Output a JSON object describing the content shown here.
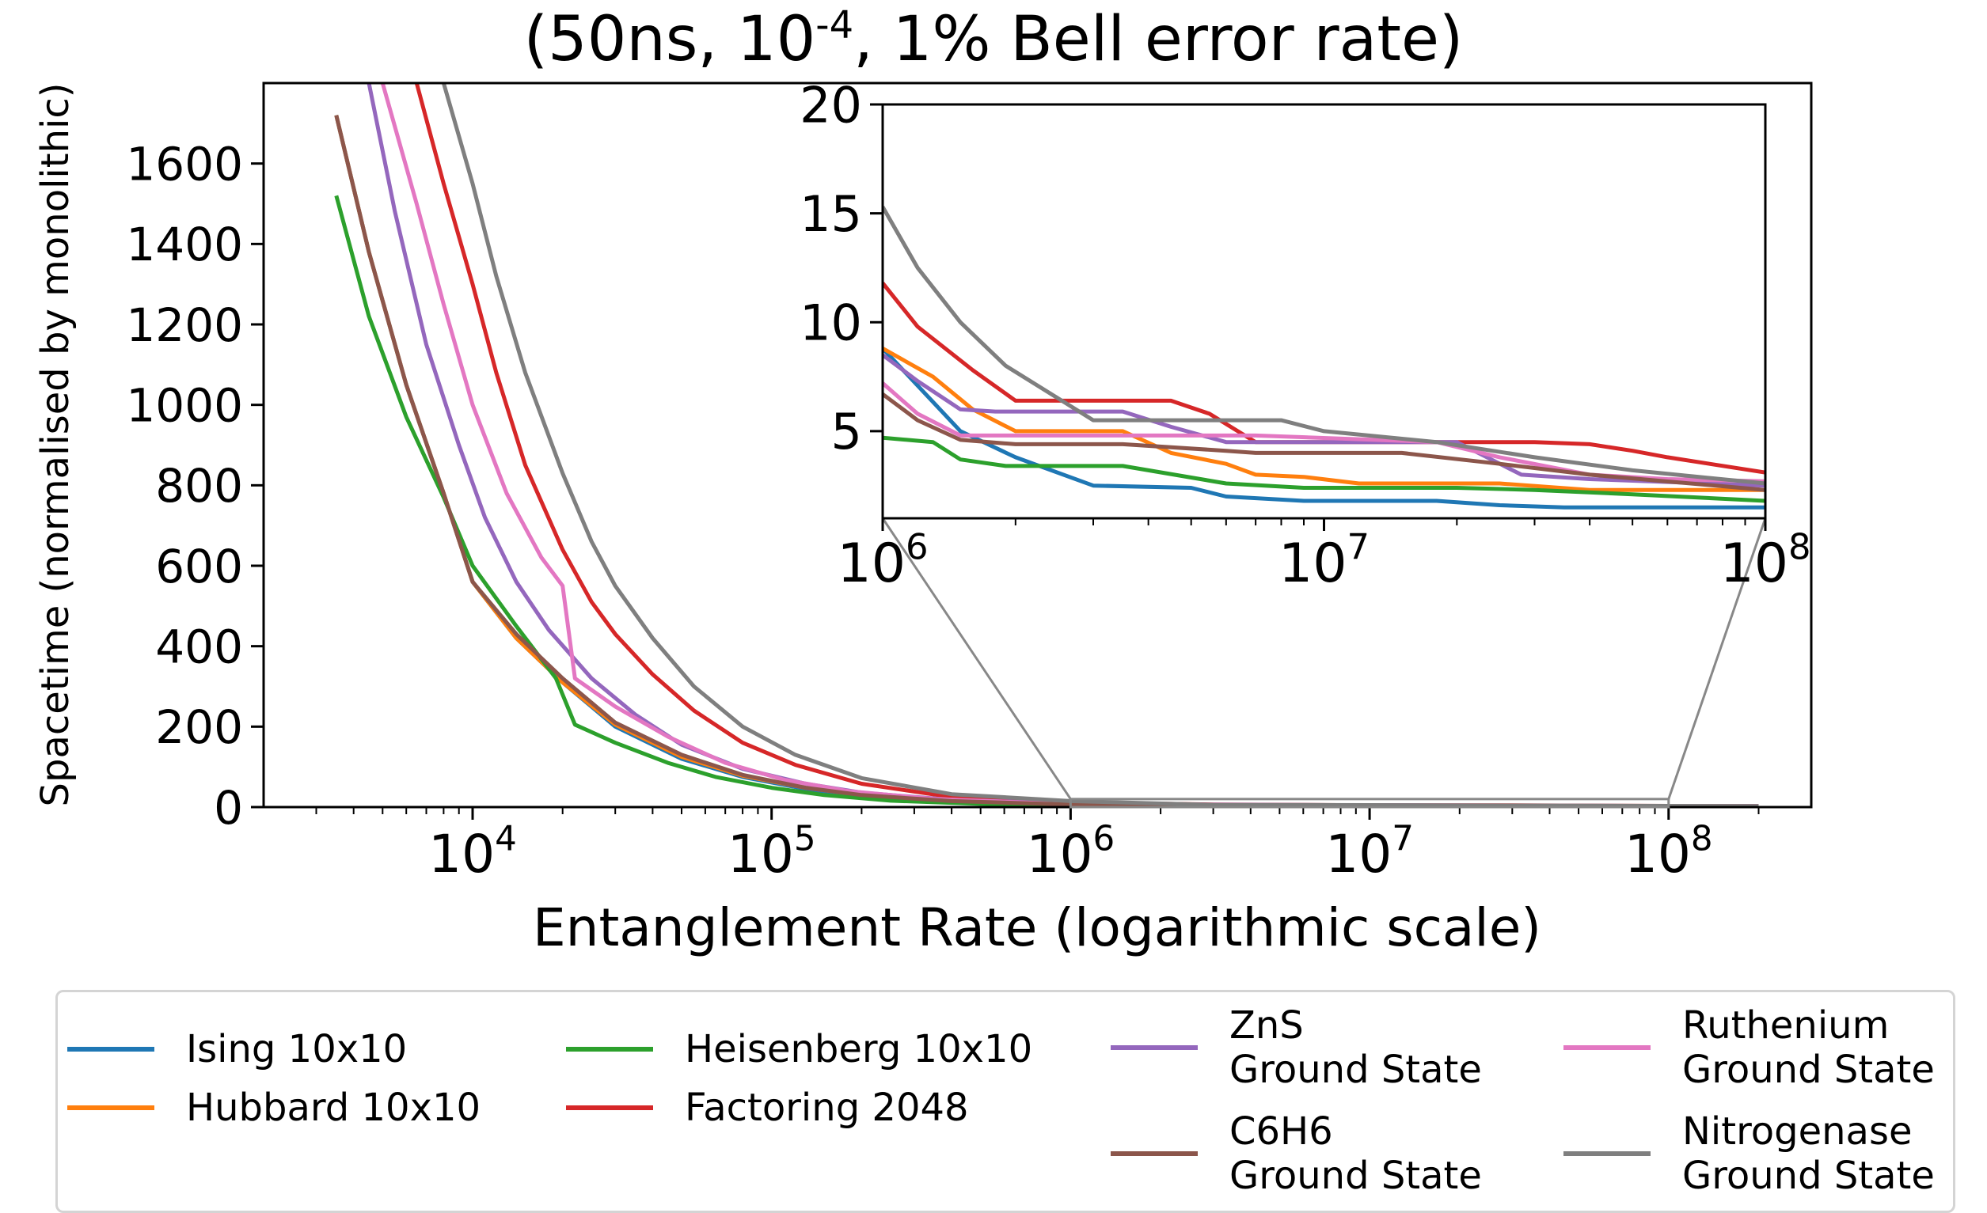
{
  "title": {
    "prefix": "(50ns, 10",
    "exponent": "-4",
    "suffix": ", 1% Bell error rate)"
  },
  "chart_data": [
    {
      "type": "line",
      "name": "main",
      "title": "(50ns, 10^-4, 1% Bell error rate)",
      "xlabel": "Entanglement Rate (logarithmic scale)",
      "ylabel": "Spacetime (normalised by monolithic)",
      "xscale": "log",
      "xlim": [
        2000,
        300000000
      ],
      "ylim": [
        0,
        1800
      ],
      "yticks": [
        0,
        200,
        400,
        600,
        800,
        1000,
        1200,
        1400,
        1600
      ],
      "xticks": [
        {
          "value": 10000,
          "base": "10",
          "exp": "4"
        },
        {
          "value": 100000,
          "base": "10",
          "exp": "5"
        },
        {
          "value": 1000000,
          "base": "10",
          "exp": "6"
        },
        {
          "value": 10000000,
          "base": "10",
          "exp": "7"
        },
        {
          "value": 100000000,
          "base": "10",
          "exp": "8"
        }
      ],
      "grid": false,
      "legend": "below",
      "series": [
        {
          "name": "Ising 10x10",
          "color": "#1f77b4",
          "x": [
            3500,
            4500,
            6000,
            8000,
            10000,
            14000,
            20000,
            30000,
            50000,
            80000,
            130000,
            200000,
            400000,
            1000000,
            3000000,
            10000000,
            30000000,
            100000000,
            200000000
          ],
          "y": [
            1720,
            1380,
            1050,
            780,
            560,
            420,
            310,
            200,
            120,
            75,
            45,
            28,
            14,
            9,
            3,
            2,
            1.5,
            1.5,
            1.5
          ]
        },
        {
          "name": "Hubbard 10x10",
          "color": "#ff7f0e",
          "x": [
            3500,
            4500,
            6000,
            8000,
            10000,
            14000,
            20000,
            30000,
            50000,
            80000,
            130000,
            200000,
            400000,
            1000000,
            3000000,
            10000000,
            30000000,
            100000000,
            200000000
          ],
          "y": [
            1720,
            1380,
            1050,
            780,
            560,
            420,
            310,
            205,
            125,
            78,
            48,
            30,
            16,
            9,
            5,
            3,
            2.5,
            2,
            2
          ]
        },
        {
          "name": "Heisenberg 10x10",
          "color": "#2ca02c",
          "x": [
            3500,
            4500,
            6000,
            8000,
            10000,
            14000,
            19000,
            22000,
            30000,
            45000,
            65000,
            100000,
            150000,
            250000,
            500000,
            1000000,
            3000000,
            10000000,
            30000000,
            100000000,
            200000000
          ],
          "y": [
            1520,
            1220,
            970,
            770,
            600,
            450,
            320,
            205,
            160,
            110,
            75,
            48,
            30,
            16,
            8,
            4.5,
            3,
            2.3,
            2.2,
            1.8,
            1.8
          ]
        },
        {
          "name": "Factoring 2048",
          "color": "#d62728",
          "x": [
            6500,
            8000,
            10000,
            12000,
            15000,
            20000,
            25000,
            30000,
            40000,
            55000,
            80000,
            120000,
            200000,
            400000,
            1000000,
            3000000,
            10000000,
            30000000,
            100000000,
            200000000
          ],
          "y": [
            1800,
            1550,
            1300,
            1080,
            850,
            640,
            510,
            430,
            330,
            240,
            160,
            105,
            58,
            25,
            12,
            6.5,
            4.5,
            4.5,
            3,
            3
          ]
        },
        {
          "name": "ZnS\nGround State",
          "color": "#9467bd",
          "x": [
            4500,
            5500,
            7000,
            9000,
            11000,
            14000,
            18000,
            25000,
            35000,
            50000,
            80000,
            130000,
            200000,
            400000,
            1000000,
            3000000,
            10000000,
            30000000,
            100000000,
            200000000
          ],
          "y": [
            1800,
            1480,
            1150,
            900,
            720,
            560,
            440,
            320,
            230,
            155,
            95,
            58,
            36,
            18,
            9,
            6,
            4.5,
            3,
            2.3,
            2.3
          ]
        },
        {
          "name": "Ruthenium\nGround State",
          "color": "#e377c2",
          "x": [
            5000,
            6500,
            8000,
            10000,
            13000,
            17000,
            20000,
            22000,
            30000,
            45000,
            70000,
            110000,
            180000,
            350000,
            1000000,
            3000000,
            10000000,
            30000000,
            100000000,
            200000000
          ],
          "y": [
            1800,
            1500,
            1250,
            1000,
            780,
            620,
            550,
            320,
            250,
            175,
            110,
            68,
            40,
            20,
            7,
            5,
            4.5,
            4,
            2.5,
            2.5
          ]
        },
        {
          "name": "C6H6\nGround State",
          "color": "#8c564b",
          "x": [
            3500,
            4500,
            6000,
            8000,
            10000,
            14000,
            20000,
            30000,
            50000,
            80000,
            130000,
            200000,
            400000,
            1000000,
            3000000,
            10000000,
            30000000,
            100000000,
            200000000
          ],
          "y": [
            1720,
            1380,
            1050,
            780,
            560,
            430,
            320,
            210,
            130,
            80,
            48,
            30,
            15,
            6.5,
            4.5,
            4,
            3.5,
            2.5,
            2.2
          ]
        },
        {
          "name": "Nitrogenase\nGround State",
          "color": "#7f7f7f",
          "x": [
            8000,
            10000,
            12000,
            15000,
            20000,
            25000,
            30000,
            40000,
            55000,
            80000,
            120000,
            200000,
            400000,
            1000000,
            3000000,
            10000000,
            30000000,
            100000000,
            200000000
          ],
          "y": [
            1800,
            1550,
            1320,
            1080,
            830,
            660,
            550,
            420,
            300,
            200,
            130,
            72,
            32,
            15,
            5.5,
            5,
            4,
            3,
            2.6
          ]
        }
      ]
    },
    {
      "type": "line",
      "name": "inset",
      "xscale": "log",
      "xlim": [
        1000000,
        100000000
      ],
      "ylim": [
        1,
        20
      ],
      "yticks": [
        5,
        10,
        15,
        20
      ],
      "xticks": [
        {
          "value": 1000000,
          "base": "10",
          "exp": "6"
        },
        {
          "value": 10000000,
          "base": "10",
          "exp": "7"
        },
        {
          "value": 100000000,
          "base": "10",
          "exp": "8"
        }
      ],
      "zoom_region": {
        "x": [
          1000000,
          100000000
        ],
        "y": [
          0,
          20
        ]
      },
      "series": [
        {
          "name": "Ising 10x10",
          "color": "#1f77b4",
          "x": [
            1000000,
            1500000,
            2000000,
            3000000,
            5000000,
            6000000,
            9000000,
            18000000,
            25000000,
            35000000,
            100000000
          ],
          "y": [
            8.8,
            5.0,
            3.8,
            2.5,
            2.4,
            2.0,
            1.8,
            1.8,
            1.6,
            1.5,
            1.5
          ]
        },
        {
          "name": "Hubbard 10x10",
          "color": "#ff7f0e",
          "x": [
            1000000,
            1300000,
            1600000,
            2000000,
            3500000,
            4500000,
            6000000,
            7000000,
            9000000,
            12000000,
            25000000,
            40000000,
            100000000
          ],
          "y": [
            8.8,
            7.5,
            6.0,
            5.0,
            5.0,
            4.0,
            3.5,
            3.0,
            2.9,
            2.6,
            2.6,
            2.3,
            2.3
          ]
        },
        {
          "name": "Heisenberg 10x10",
          "color": "#2ca02c",
          "x": [
            1000000,
            1300000,
            1500000,
            1900000,
            3500000,
            6000000,
            9000000,
            20000000,
            30000000,
            50000000,
            100000000
          ],
          "y": [
            4.7,
            4.5,
            3.7,
            3.4,
            3.4,
            2.6,
            2.4,
            2.4,
            2.3,
            2.1,
            1.8
          ]
        },
        {
          "name": "Factoring 2048",
          "color": "#d62728",
          "x": [
            1000000,
            1200000,
            1600000,
            2000000,
            4500000,
            5500000,
            7000000,
            30000000,
            40000000,
            50000000,
            60000000,
            100000000
          ],
          "y": [
            11.8,
            9.8,
            7.8,
            6.4,
            6.4,
            5.8,
            4.5,
            4.5,
            4.4,
            4.1,
            3.8,
            3.1
          ]
        },
        {
          "name": "ZnS\nGround State",
          "color": "#9467bd",
          "x": [
            1000000,
            1200000,
            1500000,
            1800000,
            3500000,
            4500000,
            6000000,
            9000000,
            20000000,
            28000000,
            40000000,
            100000000
          ],
          "y": [
            8.5,
            7.3,
            6.0,
            5.9,
            5.9,
            5.2,
            4.5,
            4.5,
            4.5,
            3.0,
            2.8,
            2.5
          ]
        },
        {
          "name": "Ruthenium\nGround State",
          "color": "#e377c2",
          "x": [
            1000000,
            1200000,
            1500000,
            2000000,
            3500000,
            5500000,
            7000000,
            18000000,
            25000000,
            40000000,
            60000000,
            100000000
          ],
          "y": [
            7.2,
            5.8,
            4.8,
            4.8,
            4.8,
            4.8,
            4.8,
            4.5,
            3.8,
            3.0,
            2.8,
            2.7
          ]
        },
        {
          "name": "C6H6\nGround State",
          "color": "#8c564b",
          "x": [
            1000000,
            1200000,
            1500000,
            2000000,
            3500000,
            6000000,
            7000000,
            9000000,
            15000000,
            25000000,
            40000000,
            100000000
          ],
          "y": [
            6.7,
            5.5,
            4.6,
            4.4,
            4.4,
            4.1,
            4.0,
            4.0,
            4.0,
            3.5,
            3.0,
            2.3
          ]
        },
        {
          "name": "Nitrogenase\nGround State",
          "color": "#7f7f7f",
          "x": [
            1000000,
            1200000,
            1500000,
            1900000,
            2500000,
            3000000,
            4000000,
            8000000,
            10000000,
            18000000,
            30000000,
            50000000,
            100000000
          ],
          "y": [
            15.3,
            12.5,
            10.0,
            8.0,
            6.5,
            5.5,
            5.5,
            5.5,
            5.0,
            4.5,
            3.8,
            3.2,
            2.6
          ]
        }
      ]
    }
  ]
}
